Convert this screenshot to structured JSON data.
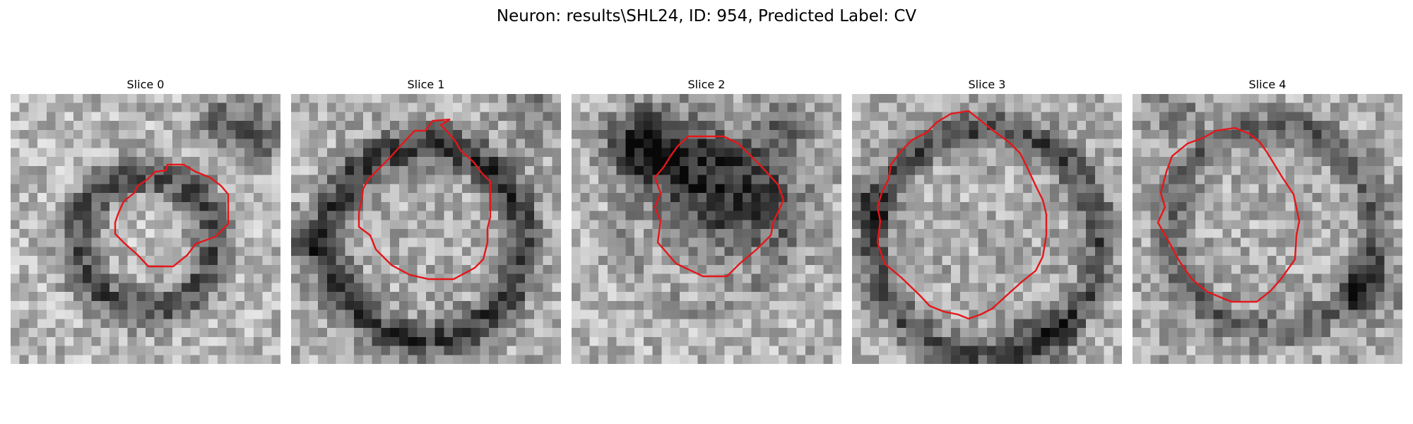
{
  "figure": {
    "title": "Neuron: results\\SHL24, ID: 954, Predicted Label: CV"
  },
  "colors": {
    "contour": "#e4171a",
    "background": "#ffffff",
    "text": "#000000"
  },
  "panels": [
    {
      "title": "Slice 0"
    },
    {
      "title": "Slice 1"
    },
    {
      "title": "Slice 2"
    },
    {
      "title": "Slice 3"
    },
    {
      "title": "Slice 4"
    }
  ]
}
